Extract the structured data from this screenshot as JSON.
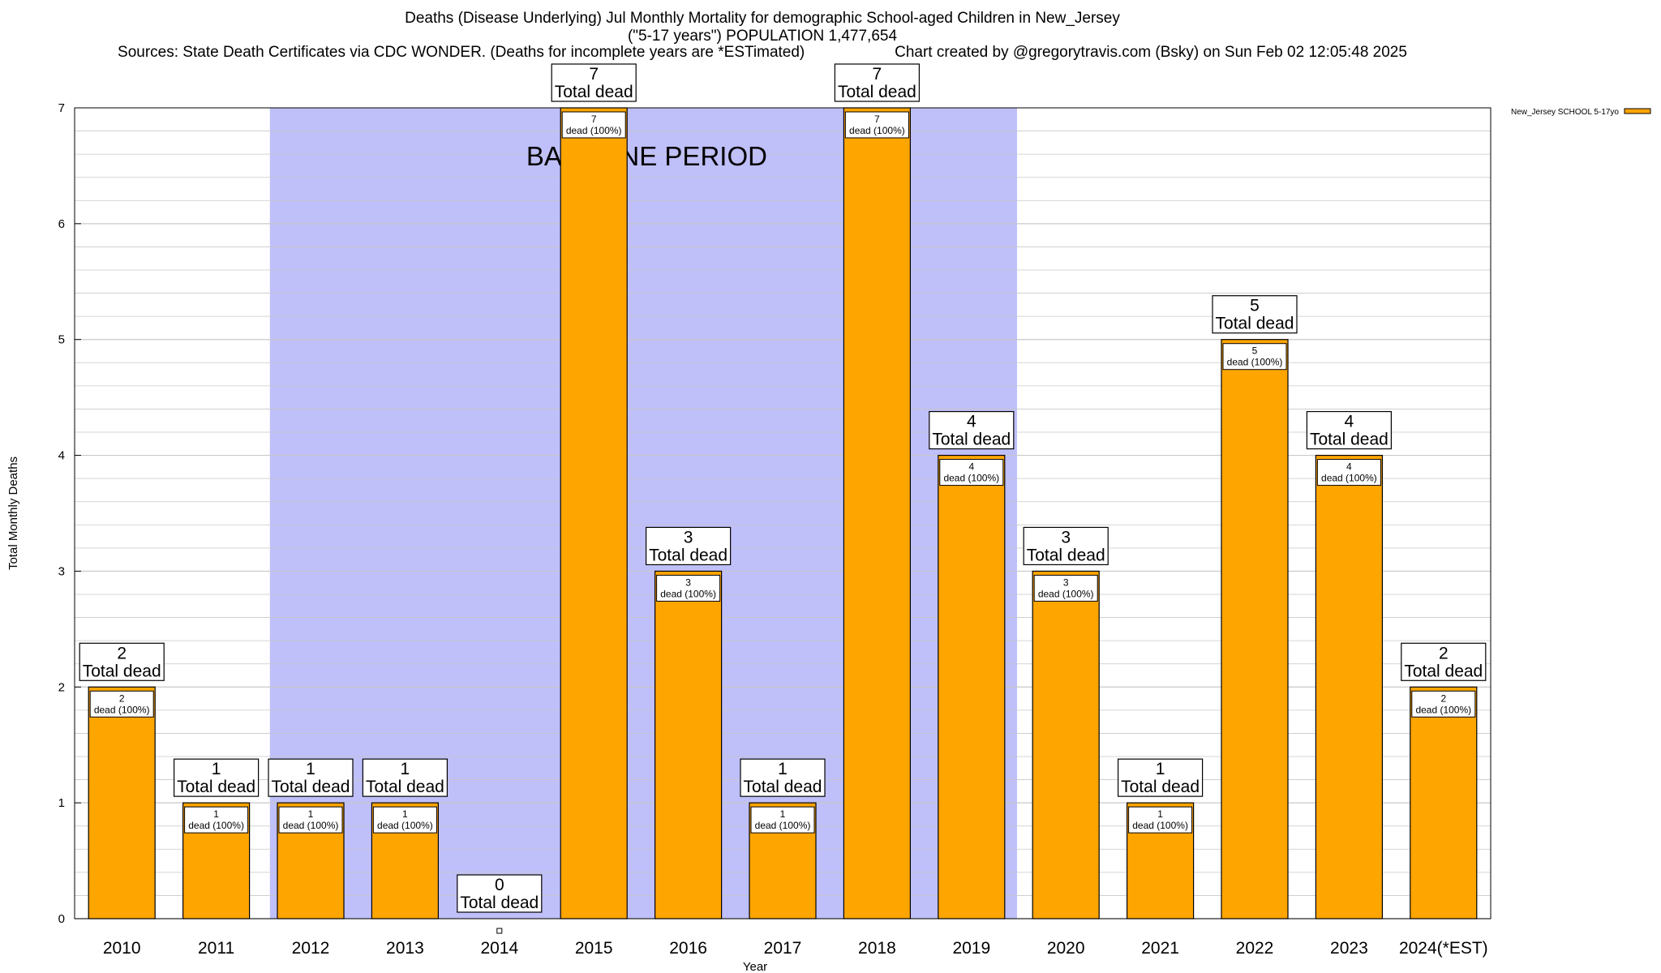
{
  "title": {
    "line1": "Deaths (Disease Underlying) Jul Monthly Mortality for demographic School-aged Children in New_Jersey",
    "line2": "(\"5-17 years\") POPULATION 1,477,654",
    "sources": "Sources: State Death Certificates via CDC WONDER. (Deaths for incomplete years are *ESTimated)",
    "credit": "Chart created by @gregorytravis.com (Bsky) on Sun Feb 02 12:05:48 2025"
  },
  "colors": {
    "bar": "#FFA500",
    "baseline_band": "#BFBFFA",
    "grid": "#C8C8C8",
    "bar_border": "#000000"
  },
  "chart_data": {
    "type": "bar",
    "xlabel": "Year",
    "ylabel": "Total Monthly Deaths",
    "ylim": [
      0,
      7
    ],
    "yticks": [
      "0",
      "1",
      "2",
      "3",
      "4",
      "5",
      "6",
      "7"
    ],
    "grid": true,
    "legend_position": "top-right",
    "categories": [
      "2010",
      "2011",
      "2012",
      "2013",
      "2014",
      "2015",
      "2016",
      "2017",
      "2018",
      "2019",
      "2020",
      "2021",
      "2022",
      "2023",
      "2024(*EST)"
    ],
    "series": [
      {
        "name": "New_Jersey SCHOOL 5-17yo",
        "values": [
          2,
          1,
          1,
          1,
          0,
          7,
          3,
          1,
          7,
          4,
          3,
          1,
          5,
          4,
          2
        ]
      }
    ],
    "total_label": "Total dead",
    "inner_label_suffix": "dead (100%)",
    "annotation": {
      "text": "BASELINE PERIOD",
      "from": "2012",
      "to": "2019"
    }
  }
}
